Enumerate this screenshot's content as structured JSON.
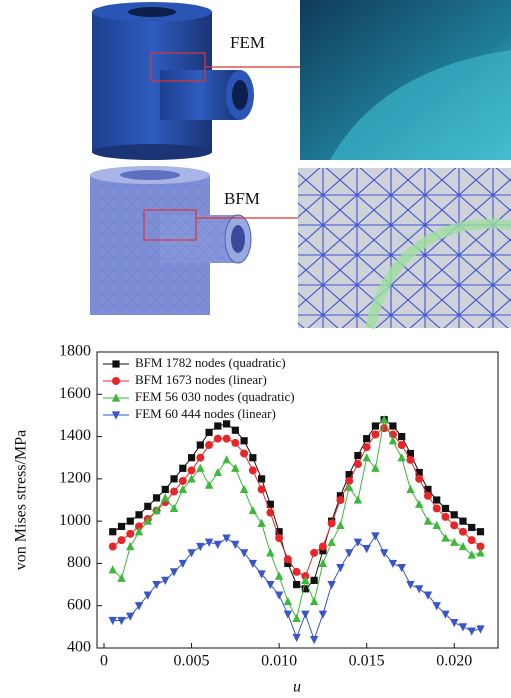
{
  "images": {
    "top_label": "FEM",
    "bottom_label": "BFM"
  },
  "chart_data": {
    "type": "line",
    "y_label": "von Mises stress/MPa",
    "x_label": "u",
    "xlim": [
      -0.0004,
      0.0225
    ],
    "ylim": [
      400,
      1800
    ],
    "xticks": [
      0,
      0.005,
      {
        "value": 0.01,
        "label": "0.010"
      },
      0.015,
      {
        "value": 0.02,
        "label": "0.020"
      }
    ],
    "yticks": [
      400,
      600,
      800,
      1000,
      1200,
      1400,
      1600,
      1800
    ],
    "legend": "upper-left",
    "x": [
      0.0005,
      0.001,
      0.0015,
      0.002,
      0.0025,
      0.003,
      0.0035,
      0.004,
      0.0045,
      0.005,
      0.0055,
      0.006,
      0.0065,
      0.007,
      0.0075,
      0.008,
      0.0085,
      0.009,
      0.0095,
      0.01,
      0.0105,
      0.011,
      0.0115,
      0.012,
      0.0125,
      0.013,
      0.0135,
      0.014,
      0.0145,
      0.015,
      0.0155,
      0.016,
      0.0165,
      0.017,
      0.0175,
      0.018,
      0.0185,
      0.019,
      0.0195,
      0.02,
      0.0205,
      0.021,
      0.0215
    ],
    "series": [
      {
        "name": "BFM 1782 nodes (quadratic)",
        "color": "#111111",
        "marker": "square",
        "values": [
          950,
          975,
          1000,
          1030,
          1070,
          1110,
          1150,
          1200,
          1250,
          1300,
          1360,
          1420,
          1450,
          1460,
          1430,
          1380,
          1300,
          1200,
          1080,
          950,
          800,
          700,
          680,
          720,
          860,
          1000,
          1120,
          1220,
          1310,
          1390,
          1450,
          1480,
          1450,
          1400,
          1320,
          1230,
          1150,
          1100,
          1060,
          1030,
          1000,
          970,
          950
        ]
      },
      {
        "name": "BFM 1673 nodes (linear)",
        "color": "#e8262a",
        "marker": "circle",
        "values": [
          880,
          910,
          940,
          975,
          1010,
          1050,
          1090,
          1140,
          1190,
          1240,
          1300,
          1360,
          1390,
          1390,
          1370,
          1320,
          1240,
          1150,
          1040,
          920,
          820,
          760,
          740,
          850,
          880,
          990,
          1100,
          1190,
          1270,
          1350,
          1410,
          1440,
          1410,
          1360,
          1290,
          1200,
          1120,
          1060,
          1020,
          980,
          950,
          910,
          880
        ]
      },
      {
        "name": "FEM 56 030 nodes (quadratic)",
        "color": "#3db83d",
        "marker": "triangle-up",
        "values": [
          770,
          730,
          880,
          950,
          1000,
          1050,
          1110,
          1060,
          1150,
          1200,
          1250,
          1170,
          1230,
          1290,
          1250,
          1150,
          1050,
          990,
          850,
          740,
          620,
          540,
          720,
          620,
          800,
          900,
          980,
          1160,
          1100,
          1300,
          1250,
          1480,
          1380,
          1300,
          1150,
          1080,
          1000,
          980,
          920,
          900,
          880,
          840,
          850
        ]
      },
      {
        "name": "FEM 60 444 nodes (linear)",
        "color": "#3a55c8",
        "marker": "triangle-down",
        "values": [
          530,
          530,
          550,
          600,
          650,
          700,
          720,
          760,
          800,
          850,
          880,
          900,
          890,
          920,
          890,
          850,
          800,
          750,
          700,
          650,
          560,
          450,
          560,
          440,
          560,
          700,
          780,
          850,
          900,
          870,
          930,
          850,
          800,
          780,
          700,
          680,
          650,
          600,
          560,
          520,
          500,
          480,
          490
        ]
      }
    ]
  }
}
